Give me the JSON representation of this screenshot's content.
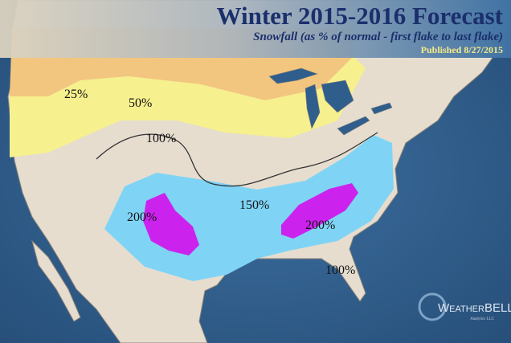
{
  "header": {
    "title": "Winter 2015-2016 Forecast",
    "subtitle": "Snowfall (as % of normal - first flake to last flake)",
    "published": "Published 8/27/2015"
  },
  "map": {
    "labels": [
      "25%",
      "50%",
      "100%",
      "150%",
      "200%",
      "200%",
      "100%"
    ]
  },
  "logo": {
    "name": "WeatherBELL",
    "tagline": "Analytics LLC"
  }
}
